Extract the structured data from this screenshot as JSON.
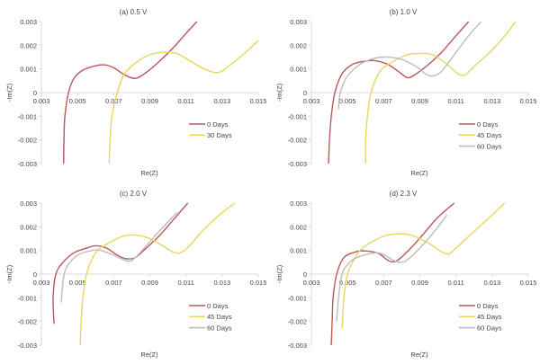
{
  "colors": {
    "0 Days": "#b9585a",
    "30 Days": "#e8d75c",
    "45 Days": "#e8d75c",
    "60 Days": "#bdbdbd",
    "axis": "#d9d9d9"
  },
  "chart_data": [
    {
      "type": "line",
      "title": "(a)  0.5 V",
      "xlabel": "Re(Z)",
      "ylabel": "-Im(Z)",
      "xlim": [
        0.003,
        0.015
      ],
      "ylim": [
        -0.003,
        0.003
      ],
      "xticks": [
        "0.003",
        "0.005",
        "0.007",
        "0.009",
        "0.011",
        "0.013",
        "0.015"
      ],
      "yticks": [
        "0.003",
        "0.002",
        "0.001",
        "0",
        "-0.001",
        "-0.002",
        "-0.003"
      ],
      "legend": "right-middle",
      "series": [
        {
          "name": "0 Days",
          "points": [
            [
              0.00423,
              -0.003
            ],
            [
              0.00425,
              -0.002
            ],
            [
              0.0043,
              -0.001
            ],
            [
              0.0045,
              0
            ],
            [
              0.0048,
              0.0006
            ],
            [
              0.0053,
              0.00095
            ],
            [
              0.006,
              0.00113
            ],
            [
              0.0065,
              0.00117
            ],
            [
              0.007,
              0.00105
            ],
            [
              0.0076,
              0.00075
            ],
            [
              0.0082,
              0.0006
            ],
            [
              0.0088,
              0.00085
            ],
            [
              0.0095,
              0.0013
            ],
            [
              0.0103,
              0.0019
            ],
            [
              0.011,
              0.0025
            ],
            [
              0.0116,
              0.003
            ]
          ]
        },
        {
          "name": "30 Days",
          "points": [
            [
              0.00675,
              -0.003
            ],
            [
              0.0068,
              -0.002
            ],
            [
              0.0069,
              -0.001
            ],
            [
              0.0072,
              0
            ],
            [
              0.0076,
              0.0008
            ],
            [
              0.0083,
              0.0013
            ],
            [
              0.009,
              0.0016
            ],
            [
              0.0098,
              0.0017
            ],
            [
              0.0105,
              0.00165
            ],
            [
              0.0113,
              0.0013
            ],
            [
              0.012,
              0.001
            ],
            [
              0.0128,
              0.00085
            ],
            [
              0.0135,
              0.0012
            ],
            [
              0.0143,
              0.0017
            ],
            [
              0.015,
              0.0022
            ]
          ]
        }
      ]
    },
    {
      "type": "line",
      "title": "(b)  1.0 V",
      "xlabel": "Re(Z)",
      "ylabel": "-Im(Z)",
      "xlim": [
        0.003,
        0.015
      ],
      "ylim": [
        -0.003,
        0.003
      ],
      "xticks": [
        "0.003",
        "0.005",
        "0.007",
        "0.009",
        "0.011",
        "0.013",
        "0.015"
      ],
      "yticks": [
        "0.003",
        "0.002",
        "0.001",
        "0",
        "-0.001",
        "-0.002",
        "-0.003"
      ],
      "legend": "right-middle",
      "series": [
        {
          "name": "0 Days",
          "points": [
            [
              0.00395,
              -0.003
            ],
            [
              0.004,
              -0.002
            ],
            [
              0.0041,
              -0.001
            ],
            [
              0.0043,
              0
            ],
            [
              0.0047,
              0.0008
            ],
            [
              0.0053,
              0.0012
            ],
            [
              0.006,
              0.00133
            ],
            [
              0.0065,
              0.00135
            ],
            [
              0.0072,
              0.0012
            ],
            [
              0.0078,
              0.0009
            ],
            [
              0.0083,
              0.00063
            ],
            [
              0.0086,
              0.0007
            ],
            [
              0.009,
              0.0009
            ],
            [
              0.0095,
              0.0012
            ],
            [
              0.0102,
              0.0017
            ],
            [
              0.011,
              0.0024
            ],
            [
              0.0117,
              0.003
            ]
          ]
        },
        {
          "name": "45 Days",
          "points": [
            [
              0.006,
              -0.003
            ],
            [
              0.006,
              -0.002
            ],
            [
              0.0061,
              -0.001
            ],
            [
              0.0063,
              0
            ],
            [
              0.0068,
              0.0009
            ],
            [
              0.0075,
              0.0013
            ],
            [
              0.0083,
              0.0016
            ],
            [
              0.009,
              0.00165
            ],
            [
              0.0097,
              0.0016
            ],
            [
              0.0105,
              0.0012
            ],
            [
              0.0111,
              0.0008
            ],
            [
              0.0115,
              0.00075
            ],
            [
              0.012,
              0.0011
            ],
            [
              0.013,
              0.0018
            ],
            [
              0.0137,
              0.0024
            ],
            [
              0.0143,
              0.003
            ]
          ]
        },
        {
          "name": "60 Days",
          "points": [
            [
              0.0045,
              -0.0007
            ],
            [
              0.0046,
              0
            ],
            [
              0.005,
              0.0007
            ],
            [
              0.0057,
              0.0012
            ],
            [
              0.0065,
              0.00145
            ],
            [
              0.0072,
              0.0015
            ],
            [
              0.008,
              0.0014
            ],
            [
              0.0088,
              0.0011
            ],
            [
              0.0093,
              0.0008
            ],
            [
              0.0097,
              0.0007
            ],
            [
              0.0102,
              0.0009
            ],
            [
              0.011,
              0.0017
            ],
            [
              0.0118,
              0.0025
            ],
            [
              0.0124,
              0.003
            ]
          ]
        }
      ]
    },
    {
      "type": "line",
      "title": "(c)  2.0 V",
      "xlabel": "Re(Z)",
      "ylabel": "-Im(Z)",
      "xlim": [
        0.003,
        0.015
      ],
      "ylim": [
        -0.003,
        0.003
      ],
      "xticks": [
        "0.003",
        "0.005",
        "0.007",
        "0.009",
        "0.011",
        "0.013",
        "0.015"
      ],
      "yticks": [
        "0.003",
        "0.002",
        "0.001",
        "0",
        "-0.001",
        "-0.002",
        "-0.003"
      ],
      "legend": "right-middle",
      "series": [
        {
          "name": "0 Days",
          "points": [
            [
              0.0037,
              -0.0021
            ],
            [
              0.00365,
              -0.001
            ],
            [
              0.0038,
              0
            ],
            [
              0.0042,
              0.0005
            ],
            [
              0.0048,
              0.0009
            ],
            [
              0.0055,
              0.0011
            ],
            [
              0.006,
              0.0012
            ],
            [
              0.0066,
              0.0011
            ],
            [
              0.0072,
              0.0008
            ],
            [
              0.0077,
              0.00065
            ],
            [
              0.0082,
              0.0007
            ],
            [
              0.0088,
              0.0011
            ],
            [
              0.0095,
              0.0016
            ],
            [
              0.0103,
              0.0023
            ],
            [
              0.0111,
              0.003
            ]
          ]
        },
        {
          "name": "45 Days",
          "points": [
            [
              0.00515,
              -0.003
            ],
            [
              0.0052,
              -0.002
            ],
            [
              0.0053,
              -0.001
            ],
            [
              0.0055,
              0
            ],
            [
              0.006,
              0.0009
            ],
            [
              0.0067,
              0.0013
            ],
            [
              0.0075,
              0.0016
            ],
            [
              0.0082,
              0.00165
            ],
            [
              0.009,
              0.0015
            ],
            [
              0.0097,
              0.0012
            ],
            [
              0.0103,
              0.00093
            ],
            [
              0.0107,
              0.0009
            ],
            [
              0.0112,
              0.0012
            ],
            [
              0.012,
              0.0019
            ],
            [
              0.013,
              0.0026
            ],
            [
              0.0137,
              0.003
            ]
          ]
        },
        {
          "name": "60 Days",
          "points": [
            [
              0.0041,
              -0.0012
            ],
            [
              0.0042,
              -0.0003
            ],
            [
              0.0044,
              0.0003
            ],
            [
              0.005,
              0.0008
            ],
            [
              0.0058,
              0.001
            ],
            [
              0.0063,
              0.001
            ],
            [
              0.007,
              0.0008
            ],
            [
              0.0078,
              0.00055
            ],
            [
              0.0082,
              0.0007
            ],
            [
              0.0088,
              0.0012
            ],
            [
              0.0095,
              0.0018
            ],
            [
              0.0105,
              0.0026
            ]
          ]
        }
      ]
    },
    {
      "type": "line",
      "title": "(d) 2.3 V",
      "xlabel": "Re(Z)",
      "ylabel": "-Im(Z)",
      "xlim": [
        0.003,
        0.015
      ],
      "ylim": [
        -0.003,
        0.003
      ],
      "xticks": [
        "0.003",
        "0.005",
        "0.007",
        "0.009",
        "0.011",
        "0.013",
        "0.015"
      ],
      "yticks": [
        "0.003",
        "0.002",
        "0.001",
        "0",
        "-0.001",
        "-0.002",
        "-0.003"
      ],
      "legend": "right-middle",
      "series": [
        {
          "name": "0 Days",
          "points": [
            [
              0.0041,
              -0.003
            ],
            [
              0.00415,
              -0.002
            ],
            [
              0.0042,
              -0.001
            ],
            [
              0.0044,
              0
            ],
            [
              0.0048,
              0.0007
            ],
            [
              0.0055,
              0.00095
            ],
            [
              0.006,
              0.00098
            ],
            [
              0.0067,
              0.00088
            ],
            [
              0.0072,
              0.0006
            ],
            [
              0.0075,
              0.00052
            ],
            [
              0.0078,
              0.0006
            ],
            [
              0.0085,
              0.0011
            ],
            [
              0.0092,
              0.0017
            ],
            [
              0.01,
              0.0024
            ],
            [
              0.0109,
              0.003
            ]
          ]
        },
        {
          "name": "45 Days",
          "points": [
            [
              0.0047,
              -0.0023
            ],
            [
              0.0048,
              -0.001
            ],
            [
              0.005,
              0
            ],
            [
              0.0055,
              0.0008
            ],
            [
              0.006,
              0.0012
            ],
            [
              0.007,
              0.0016
            ],
            [
              0.0078,
              0.0017
            ],
            [
              0.0085,
              0.00165
            ],
            [
              0.0095,
              0.0013
            ],
            [
              0.0102,
              0.00095
            ],
            [
              0.0106,
              0.00085
            ],
            [
              0.011,
              0.0011
            ],
            [
              0.012,
              0.0018
            ],
            [
              0.013,
              0.0025
            ],
            [
              0.0137,
              0.003
            ]
          ]
        },
        {
          "name": "60 Days",
          "points": [
            [
              0.0044,
              -0.002
            ],
            [
              0.0045,
              -0.001
            ],
            [
              0.0047,
              0
            ],
            [
              0.005,
              0.0004
            ],
            [
              0.0055,
              0.0007
            ],
            [
              0.0065,
              0.0009
            ],
            [
              0.007,
              0.00082
            ],
            [
              0.0075,
              0.0006
            ],
            [
              0.0079,
              0.0005
            ],
            [
              0.0083,
              0.0006
            ],
            [
              0.009,
              0.0011
            ],
            [
              0.0098,
              0.0018
            ],
            [
              0.0105,
              0.0025
            ]
          ]
        }
      ]
    }
  ]
}
